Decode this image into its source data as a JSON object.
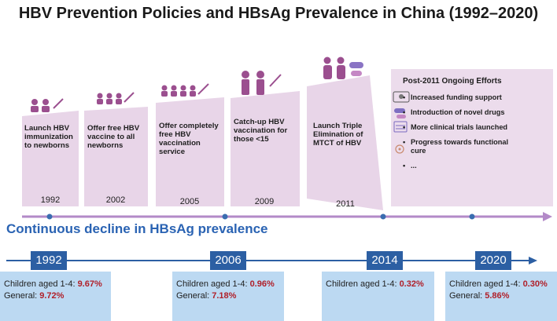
{
  "title": "HBV Prevention Policies and HBsAg Prevalence in China (1992–2020)",
  "colors": {
    "panel": "#e8d5e8",
    "arrow": "#b38ac8",
    "blue": "#2c5fa3",
    "box": "#bcd9f2",
    "value": "#b0202a"
  },
  "milestones": [
    {
      "year": "1992",
      "text": [
        "Launch HBV",
        "immunization",
        "to newborns"
      ],
      "icon": "two-babies-vaccine-icon"
    },
    {
      "year": "2002",
      "text": [
        "Offer free HBV",
        "vaccine to all",
        "newborns"
      ],
      "icon": "three-babies-vaccine-icon"
    },
    {
      "year": "2005",
      "text": [
        "Offer completely",
        "free HBV",
        "vaccination",
        "service"
      ],
      "icon": "four-babies-vaccine-icon"
    },
    {
      "year": "2009",
      "text": [
        "Catch-up HBV",
        "vaccination for",
        "those <15"
      ],
      "icon": "teens-vaccine-icon"
    },
    {
      "year": "2011",
      "text": [
        "Launch Triple",
        "Elimination of",
        "MTCT of HBV"
      ],
      "icon": "pregnant-women-pills-icon"
    }
  ],
  "efforts": {
    "title": "Post-2011  Ongoing Efforts",
    "items": [
      "Increased funding support",
      "Introduction of novel drugs",
      "More clinical trials launched",
      "Progress towards functional",
      "cure",
      "..."
    ]
  },
  "decline_title": "Continuous decline in HBsAg prevalence",
  "prevalence": [
    {
      "year": "1992",
      "children_label": "Children aged 1-4: ",
      "children": "9.67%",
      "general_label": "General: ",
      "general": "9.72%"
    },
    {
      "year": "2006",
      "children_label": "Children aged 1-4: ",
      "children": "0.96%",
      "general_label": "General: ",
      "general": "7.18%"
    },
    {
      "year": "2014",
      "children_label": "Children aged 1-4: ",
      "children": "0.32%",
      "general_label": "",
      "general": ""
    },
    {
      "year": "2020",
      "children_label": "Children aged 1-4: ",
      "children": "0.30%",
      "general_label": "General: ",
      "general": "5.86%"
    }
  ]
}
